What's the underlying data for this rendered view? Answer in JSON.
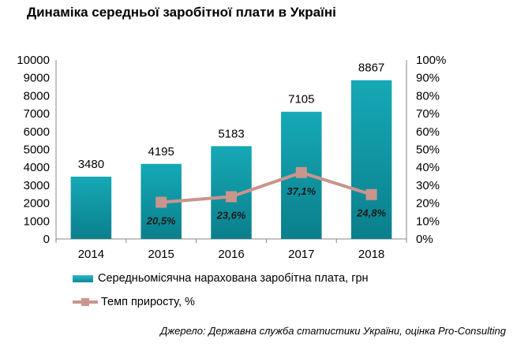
{
  "chart_data": {
    "type": "bar",
    "title": "Динаміка середньої заробітної плати в Україні",
    "categories": [
      "2014",
      "2015",
      "2016",
      "2017",
      "2018"
    ],
    "series": [
      {
        "name": "Середньомісячна нарахована заробітна плата, грн",
        "type": "bar",
        "axis": "left",
        "values": [
          3480,
          4195,
          5183,
          7105,
          8867
        ],
        "labels": [
          "3480",
          "4195",
          "5183",
          "7105",
          "8867"
        ],
        "color": "#0f98a6"
      },
      {
        "name": "Темп приросту, %",
        "type": "line",
        "axis": "right",
        "values": [
          null,
          20.5,
          23.6,
          37.1,
          24.8
        ],
        "labels": [
          "",
          "20,5%",
          "23,6%",
          "37,1%",
          "24,8%"
        ],
        "color": "#c9958d"
      }
    ],
    "ylim": [
      0,
      10000
    ],
    "y_ticks": [
      "0",
      "1000",
      "2000",
      "3000",
      "4000",
      "5000",
      "6000",
      "7000",
      "8000",
      "9000",
      "10000"
    ],
    "y2lim": [
      0,
      100
    ],
    "y2_ticks": [
      "0%",
      "10%",
      "20%",
      "30%",
      "40%",
      "50%",
      "60%",
      "70%",
      "80%",
      "90%",
      "100%"
    ],
    "legend_position": "bottom",
    "grid": false
  },
  "source": "Джерело: Державна служба статистики України, оцінка Pro-Consulting"
}
